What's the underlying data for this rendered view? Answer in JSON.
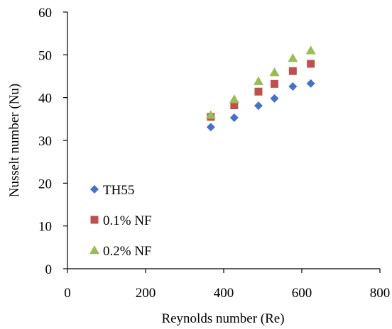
{
  "chart_data": {
    "type": "scatter",
    "title": "",
    "xlabel": "Reynolds number (Re)",
    "ylabel": "Nusselt number (Nu)",
    "xlim": [
      0,
      800
    ],
    "ylim": [
      0,
      60
    ],
    "xticks": [
      0,
      200,
      400,
      600,
      800
    ],
    "yticks": [
      0,
      10,
      20,
      30,
      40,
      50,
      60
    ],
    "grid": false,
    "legend_position": "lower-left",
    "series": [
      {
        "name": "TH55",
        "marker": "diamond",
        "color": "#4472C4",
        "x": [
          367,
          427,
          489,
          530,
          577,
          623
        ],
        "y": [
          33.1,
          35.3,
          38.1,
          39.8,
          42.6,
          43.3
        ]
      },
      {
        "name": "0.1% NF",
        "marker": "square",
        "color": "#C0504D",
        "x": [
          367,
          427,
          489,
          530,
          577,
          623
        ],
        "y": [
          35.5,
          38.2,
          41.4,
          43.2,
          46.2,
          47.9
        ]
      },
      {
        "name": "0.2% NF",
        "marker": "triangle",
        "color": "#9BBB59",
        "x": [
          367,
          427,
          489,
          530,
          577,
          623
        ],
        "y": [
          35.9,
          39.6,
          43.8,
          45.9,
          49.2,
          51.0
        ]
      }
    ]
  }
}
